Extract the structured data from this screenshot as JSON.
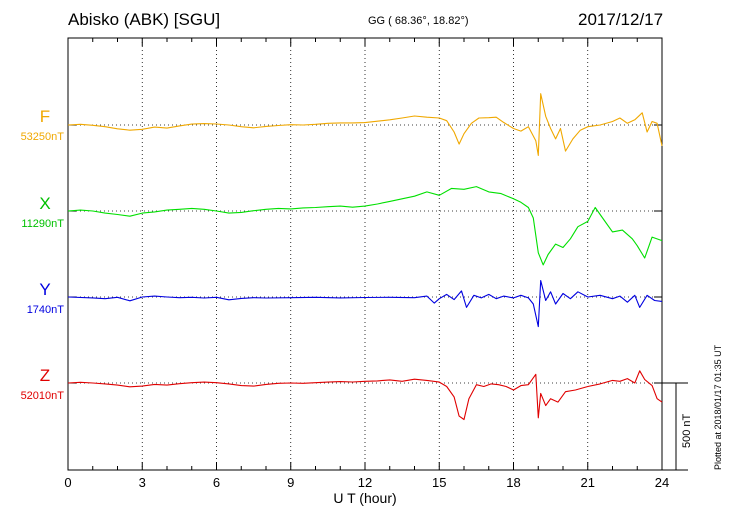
{
  "header": {
    "station": "Abisko (ABK)  [SGU]",
    "coords": "GG ( 68.36°,  18.82°)",
    "date": "2017/12/17"
  },
  "footer": {
    "plotted": "Plotted at 2018/01/17 01:35 UT",
    "scale_label": "500 nT"
  },
  "chart_data": {
    "type": "line",
    "xlabel": "U T (hour)",
    "xlim": [
      0,
      24
    ],
    "xticks": [
      0,
      3,
      6,
      9,
      12,
      15,
      18,
      21,
      24
    ],
    "scale_bar_nT": 500,
    "grid": true,
    "series": [
      {
        "name": "F",
        "baseline_label": "53250nT",
        "color": "#f0a800",
        "points": [
          [
            0,
            0
          ],
          [
            0.5,
            4
          ],
          [
            1,
            -2
          ],
          [
            1.5,
            -10
          ],
          [
            2,
            -22
          ],
          [
            2.5,
            -30
          ],
          [
            3,
            -25
          ],
          [
            3.5,
            -12
          ],
          [
            4,
            -18
          ],
          [
            4.5,
            -5
          ],
          [
            5,
            5
          ],
          [
            5.5,
            8
          ],
          [
            6,
            6
          ],
          [
            6.5,
            0
          ],
          [
            7,
            -10
          ],
          [
            7.5,
            -16
          ],
          [
            8,
            -8
          ],
          [
            8.5,
            -3
          ],
          [
            9,
            2
          ],
          [
            9.5,
            0
          ],
          [
            10,
            4
          ],
          [
            10.5,
            10
          ],
          [
            11,
            12
          ],
          [
            11.5,
            12
          ],
          [
            12,
            14
          ],
          [
            12.5,
            22
          ],
          [
            13,
            30
          ],
          [
            13.5,
            40
          ],
          [
            14,
            52
          ],
          [
            14.5,
            45
          ],
          [
            15,
            40
          ],
          [
            15.3,
            25
          ],
          [
            15.6,
            -40
          ],
          [
            15.8,
            -110
          ],
          [
            16,
            -50
          ],
          [
            16.3,
            10
          ],
          [
            16.6,
            40
          ],
          [
            17,
            42
          ],
          [
            17.3,
            45
          ],
          [
            17.6,
            15
          ],
          [
            18,
            -20
          ],
          [
            18.3,
            -35
          ],
          [
            18.6,
            -10
          ],
          [
            18.9,
            -90
          ],
          [
            19,
            -175
          ],
          [
            19.1,
            180
          ],
          [
            19.3,
            50
          ],
          [
            19.5,
            -20
          ],
          [
            19.7,
            -80
          ],
          [
            19.9,
            -20
          ],
          [
            20.1,
            -150
          ],
          [
            20.4,
            -80
          ],
          [
            20.7,
            -30
          ],
          [
            21,
            -10
          ],
          [
            21.5,
            0
          ],
          [
            22,
            20
          ],
          [
            22.3,
            40
          ],
          [
            22.6,
            10
          ],
          [
            22.9,
            30
          ],
          [
            23.2,
            70
          ],
          [
            23.4,
            -40
          ],
          [
            23.6,
            20
          ],
          [
            23.8,
            10
          ],
          [
            24,
            -120
          ]
        ]
      },
      {
        "name": "X",
        "baseline_label": "11290nT",
        "color": "#00e000",
        "points": [
          [
            0,
            0
          ],
          [
            0.5,
            5
          ],
          [
            1,
            0
          ],
          [
            1.5,
            -12
          ],
          [
            2,
            -20
          ],
          [
            2.5,
            -30
          ],
          [
            3,
            -12
          ],
          [
            3.5,
            -5
          ],
          [
            4,
            5
          ],
          [
            4.5,
            10
          ],
          [
            5,
            15
          ],
          [
            5.5,
            10
          ],
          [
            6,
            0
          ],
          [
            6.5,
            -12
          ],
          [
            7,
            -8
          ],
          [
            7.5,
            2
          ],
          [
            8,
            10
          ],
          [
            8.5,
            15
          ],
          [
            9,
            12
          ],
          [
            9.5,
            18
          ],
          [
            10,
            20
          ],
          [
            10.5,
            25
          ],
          [
            11,
            28
          ],
          [
            11.5,
            22
          ],
          [
            12,
            28
          ],
          [
            12.5,
            40
          ],
          [
            13,
            55
          ],
          [
            13.5,
            70
          ],
          [
            14,
            85
          ],
          [
            14.5,
            110
          ],
          [
            15,
            90
          ],
          [
            15.5,
            130
          ],
          [
            16,
            125
          ],
          [
            16.5,
            140
          ],
          [
            17,
            110
          ],
          [
            17.5,
            100
          ],
          [
            18,
            70
          ],
          [
            18.3,
            50
          ],
          [
            18.6,
            20
          ],
          [
            18.8,
            -40
          ],
          [
            19,
            -240
          ],
          [
            19.2,
            -310
          ],
          [
            19.4,
            -250
          ],
          [
            19.7,
            -190
          ],
          [
            20,
            -210
          ],
          [
            20.3,
            -160
          ],
          [
            20.6,
            -90
          ],
          [
            21,
            -60
          ],
          [
            21.3,
            20
          ],
          [
            21.6,
            -40
          ],
          [
            22,
            -120
          ],
          [
            22.4,
            -110
          ],
          [
            22.8,
            -160
          ],
          [
            23,
            -200
          ],
          [
            23.3,
            -270
          ],
          [
            23.6,
            -150
          ],
          [
            24,
            -170
          ]
        ]
      },
      {
        "name": "Y",
        "baseline_label": "1740nT",
        "color": "#0000e0",
        "points": [
          [
            0,
            0
          ],
          [
            1,
            -5
          ],
          [
            1.5,
            -10
          ],
          [
            2,
            -2
          ],
          [
            2.5,
            -22
          ],
          [
            3,
            0
          ],
          [
            3.5,
            5
          ],
          [
            4,
            0
          ],
          [
            4.5,
            -4
          ],
          [
            5,
            -2
          ],
          [
            5.5,
            -6
          ],
          [
            6,
            -2
          ],
          [
            6.5,
            -16
          ],
          [
            7,
            -8
          ],
          [
            7.5,
            -4
          ],
          [
            8,
            -6
          ],
          [
            9,
            -4
          ],
          [
            10,
            -2
          ],
          [
            11,
            -5
          ],
          [
            12,
            -3
          ],
          [
            13,
            -2
          ],
          [
            14,
            -4
          ],
          [
            14.5,
            5
          ],
          [
            14.8,
            -35
          ],
          [
            15,
            -10
          ],
          [
            15.3,
            15
          ],
          [
            15.6,
            -15
          ],
          [
            15.9,
            35
          ],
          [
            16.1,
            -60
          ],
          [
            16.4,
            10
          ],
          [
            16.7,
            -5
          ],
          [
            17,
            15
          ],
          [
            17.3,
            -10
          ],
          [
            17.6,
            5
          ],
          [
            18,
            -5
          ],
          [
            18.3,
            10
          ],
          [
            18.6,
            -5
          ],
          [
            18.8,
            -40
          ],
          [
            19,
            -170
          ],
          [
            19.1,
            95
          ],
          [
            19.3,
            -20
          ],
          [
            19.5,
            30
          ],
          [
            19.7,
            -40
          ],
          [
            20,
            20
          ],
          [
            20.3,
            -10
          ],
          [
            20.6,
            30
          ],
          [
            21,
            0
          ],
          [
            21.5,
            10
          ],
          [
            22,
            -10
          ],
          [
            22.3,
            5
          ],
          [
            22.6,
            -30
          ],
          [
            22.9,
            10
          ],
          [
            23.1,
            -60
          ],
          [
            23.4,
            10
          ],
          [
            23.7,
            -20
          ],
          [
            24,
            -25
          ]
        ]
      },
      {
        "name": "Z",
        "baseline_label": "52010nT",
        "color": "#e00000",
        "points": [
          [
            0,
            0
          ],
          [
            0.5,
            4
          ],
          [
            1,
            0
          ],
          [
            1.5,
            -5
          ],
          [
            2,
            -12
          ],
          [
            2.5,
            -22
          ],
          [
            3,
            -18
          ],
          [
            3.5,
            -8
          ],
          [
            4,
            -12
          ],
          [
            4.5,
            -4
          ],
          [
            5,
            2
          ],
          [
            5.5,
            5
          ],
          [
            6,
            2
          ],
          [
            6.5,
            -5
          ],
          [
            7,
            -15
          ],
          [
            7.5,
            -18
          ],
          [
            8,
            -8
          ],
          [
            8.5,
            -2
          ],
          [
            9,
            0
          ],
          [
            9.5,
            -2
          ],
          [
            10,
            2
          ],
          [
            10.5,
            5
          ],
          [
            11,
            8
          ],
          [
            11.5,
            6
          ],
          [
            12,
            10
          ],
          [
            12.5,
            12
          ],
          [
            13,
            18
          ],
          [
            13.5,
            10
          ],
          [
            14,
            22
          ],
          [
            14.5,
            15
          ],
          [
            15,
            5
          ],
          [
            15.3,
            -20
          ],
          [
            15.6,
            -80
          ],
          [
            15.8,
            -190
          ],
          [
            16,
            -210
          ],
          [
            16.2,
            -90
          ],
          [
            16.5,
            -10
          ],
          [
            16.8,
            -20
          ],
          [
            17.1,
            -5
          ],
          [
            17.4,
            -10
          ],
          [
            17.7,
            -20
          ],
          [
            18,
            -40
          ],
          [
            18.3,
            -15
          ],
          [
            18.6,
            -10
          ],
          [
            18.9,
            50
          ],
          [
            19,
            -200
          ],
          [
            19.1,
            -60
          ],
          [
            19.3,
            -130
          ],
          [
            19.5,
            -90
          ],
          [
            19.8,
            -110
          ],
          [
            20.1,
            -50
          ],
          [
            20.5,
            -40
          ],
          [
            21,
            -20
          ],
          [
            21.5,
            -5
          ],
          [
            22,
            15
          ],
          [
            22.3,
            10
          ],
          [
            22.6,
            25
          ],
          [
            22.9,
            0
          ],
          [
            23.1,
            70
          ],
          [
            23.3,
            20
          ],
          [
            23.6,
            -15
          ],
          [
            23.8,
            -90
          ],
          [
            24,
            -110
          ]
        ]
      }
    ]
  }
}
